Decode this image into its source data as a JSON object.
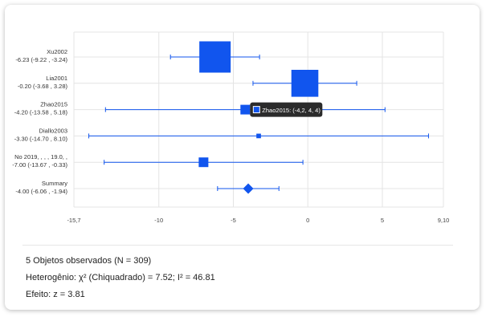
{
  "chart_data": {
    "type": "forest",
    "x_range": [
      -15.7,
      9.1
    ],
    "ticks": [
      {
        "value": -15.7,
        "label": "-15,7"
      },
      {
        "value": -10,
        "label": "-10"
      },
      {
        "value": -5,
        "label": "-5"
      },
      {
        "value": 0,
        "label": "0"
      },
      {
        "value": 5,
        "label": "5"
      },
      {
        "value": 9.1,
        "label": "9,10"
      }
    ],
    "grid": true,
    "studies": [
      {
        "name": "Xu2002",
        "ci_text": "-6.23 (-9.22 , -3.24)",
        "estimate": -6.23,
        "lower": -9.22,
        "upper": -3.24,
        "weight": 4
      },
      {
        "name": "Lia2001",
        "ci_text": "-0.20 (-3.68 , 3.28)",
        "estimate": -0.2,
        "lower": -3.68,
        "upper": 3.28,
        "weight": 3.4
      },
      {
        "name": "Zhao2015",
        "ci_text": "-4.20 (-13.58 , 5.18)",
        "estimate": -4.2,
        "lower": -13.58,
        "upper": 5.18,
        "weight": 1
      },
      {
        "name": "Diallo2003",
        "ci_text": "-3.30 (-14.70 , 8.10)",
        "estimate": -3.3,
        "lower": -14.7,
        "upper": 8.1,
        "weight": 0.3
      },
      {
        "name": "No 2019,  , , , 19.0, ,",
        "ci_text": "-7.00 (-13.67 , -0.33)",
        "estimate": -7.0,
        "lower": -13.67,
        "upper": -0.33,
        "weight": 1
      }
    ],
    "summary": {
      "name": "Summary",
      "ci_text": "-4.00 (-6.06 , -1.94)",
      "estimate": -4.0,
      "lower": -6.06,
      "upper": -1.94
    },
    "tooltip": {
      "text": "Zhao2015: (-4,2, 4, 4)",
      "study": "Zhao2015"
    },
    "colors": {
      "marker": "#1155ee",
      "grid": "#e4e4e4",
      "tooltip_bg": "#2b2b2b"
    }
  },
  "stats": {
    "observed": "5 Objetos observados (N = 309)",
    "heterogeneity": "Heterogênio: χ² (Chiquadrado) = 7.52; I² = 46.81",
    "effect": "Efeito: z = 3.81"
  }
}
